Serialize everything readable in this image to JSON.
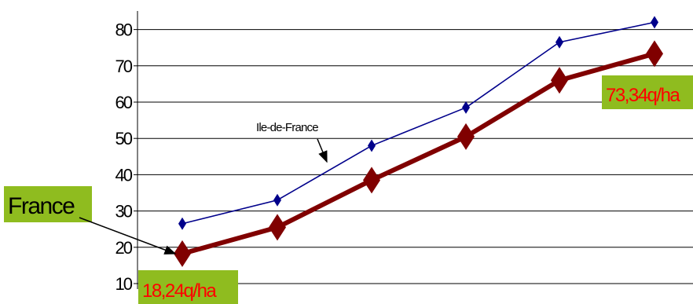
{
  "chart_data": {
    "type": "line",
    "x": [
      1,
      2,
      3,
      4,
      5,
      6
    ],
    "ylim": [
      10,
      82
    ],
    "yticks": [
      "10",
      "20",
      "30",
      "40",
      "50",
      "60",
      "70",
      "80"
    ],
    "grid": "horizontal",
    "series": [
      {
        "name": "Ile-de-France",
        "color": "#00008b",
        "marker": "diamond",
        "values": [
          26.5,
          33,
          48,
          58.5,
          76.5,
          82
        ]
      },
      {
        "name": "France",
        "color": "#800000",
        "marker": "diamond",
        "values": [
          18.24,
          25.5,
          38.5,
          50.5,
          66,
          73.34
        ]
      }
    ],
    "annotations": {
      "idf_label": "Ile-de-France",
      "france_label": "France",
      "start_value": "18,24q/ha",
      "end_value": "73,34q/ha"
    },
    "colors": {
      "label_box": "#8fbc1f",
      "value_text": "#ff0000",
      "grid": "#000000"
    }
  }
}
